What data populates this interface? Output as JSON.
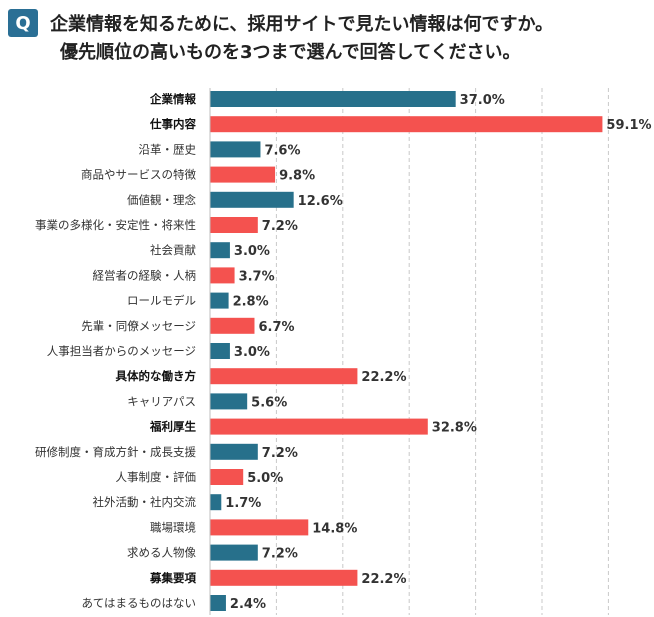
{
  "question": {
    "badge": "Q",
    "line1": "企業情報を知るために、採用サイトで見たい情報は何ですか。",
    "line2": "優先順位の高いものを3つまで選んで回答してください。"
  },
  "chart_data": {
    "type": "bar",
    "orientation": "horizontal",
    "unit": "%",
    "xlim": [
      0,
      65
    ],
    "grid": true,
    "colors": {
      "teal": "#27708b",
      "red": "#f4524f"
    },
    "categories": [
      "企業情報",
      "仕事内容",
      "沿革・歴史",
      "商品やサービスの特徴",
      "価値観・理念",
      "事業の多様化・安定性・将来性",
      "社会貢献",
      "経営者の経験・人柄",
      "ロールモデル",
      "先輩・同僚メッセージ",
      "人事担当者からのメッセージ",
      "具体的な働き方",
      "キャリアパス",
      "福利厚生",
      "研修制度・育成方針・成長支援",
      "人事制度・評価",
      "社外活動・社内交流",
      "職場環境",
      "求める人物像",
      "募集要項",
      "あてはまるものはない"
    ],
    "values": [
      37.0,
      59.1,
      7.6,
      9.8,
      12.6,
      7.2,
      3.0,
      3.7,
      2.8,
      6.7,
      3.0,
      22.2,
      5.6,
      32.8,
      7.2,
      5.0,
      1.7,
      14.8,
      7.2,
      22.2,
      2.4
    ],
    "labels": [
      "37.0%",
      "59.1%",
      "7.6%",
      "9.8%",
      "12.6%",
      "7.2%",
      "3.0%",
      "3.7%",
      "2.8%",
      "6.7%",
      "3.0%",
      "22.2%",
      "5.6%",
      "32.8%",
      "7.2%",
      "5.0%",
      "1.7%",
      "14.8%",
      "7.2%",
      "22.2%",
      "2.4%"
    ],
    "bar_colors": [
      "teal",
      "red",
      "teal",
      "red",
      "teal",
      "red",
      "teal",
      "red",
      "teal",
      "red",
      "teal",
      "red",
      "teal",
      "red",
      "teal",
      "red",
      "teal",
      "red",
      "teal",
      "red",
      "teal"
    ],
    "bold_categories": [
      true,
      true,
      false,
      false,
      false,
      false,
      false,
      false,
      false,
      false,
      false,
      true,
      false,
      true,
      false,
      false,
      false,
      false,
      false,
      true,
      false
    ]
  }
}
